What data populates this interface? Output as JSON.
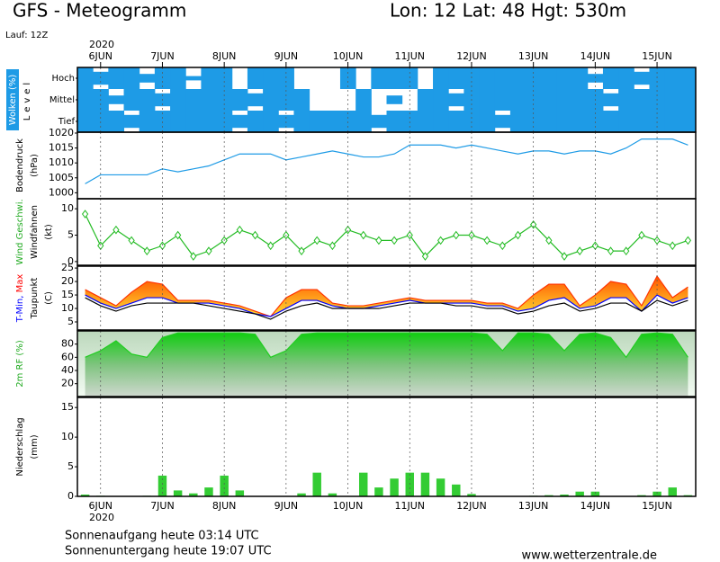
{
  "header": {
    "title": "GFS - Meteogramm",
    "location": "Lon: 12 Lat: 48 Hgt: 530m",
    "run": "Lauf: 12Z"
  },
  "time_axis": {
    "year": "2020",
    "xlim": [
      5.625,
      15.625
    ],
    "xticks": [
      {
        "value": 6,
        "label": "6JUN"
      },
      {
        "value": 7,
        "label": "7JUN"
      },
      {
        "value": 8,
        "label": "8JUN"
      },
      {
        "value": 9,
        "label": "9JUN"
      },
      {
        "value": 10,
        "label": "10JUN"
      },
      {
        "value": 11,
        "label": "11JUN"
      },
      {
        "value": 12,
        "label": "12JUN"
      },
      {
        "value": 13,
        "label": "13JUN"
      },
      {
        "value": 14,
        "label": "14JUN"
      },
      {
        "value": 15,
        "label": "15JUN"
      }
    ],
    "x": [
      5.75,
      6,
      6.25,
      6.5,
      6.75,
      7,
      7.25,
      7.5,
      7.75,
      8,
      8.25,
      8.5,
      8.75,
      9,
      9.25,
      9.5,
      9.75,
      10,
      10.25,
      10.5,
      10.75,
      11,
      11.25,
      11.5,
      11.75,
      12,
      12.25,
      12.5,
      12.75,
      13,
      13.25,
      13.5,
      13.75,
      14,
      14.25,
      14.5,
      14.75,
      15,
      15.25,
      15.5
    ]
  },
  "chart_data": [
    {
      "type": "heatmap",
      "ylabels": [
        [
          {
            "text": "Wolken (%)",
            "color": "#ffffff"
          }
        ],
        [
          {
            "text": "Level",
            "color": "#000000"
          }
        ]
      ],
      "color": "#1e9be6",
      "series": [
        {
          "name": "Hoch",
          "values": [
            100,
            60,
            100,
            100,
            40,
            100,
            100,
            20,
            100,
            100,
            0,
            100,
            100,
            100,
            0,
            0,
            0,
            100,
            0,
            100,
            100,
            100,
            0,
            100,
            100,
            100,
            100,
            100,
            100,
            100,
            100,
            100,
            100,
            40,
            100,
            100,
            60,
            100,
            100,
            100
          ]
        },
        {
          "name": "Mittel",
          "values": [
            100,
            100,
            40,
            100,
            100,
            60,
            100,
            100,
            100,
            100,
            100,
            60,
            100,
            100,
            100,
            0,
            0,
            0,
            100,
            0,
            40,
            0,
            100,
            100,
            60,
            100,
            100,
            100,
            100,
            100,
            100,
            100,
            100,
            100,
            60,
            100,
            100,
            100,
            100,
            100
          ]
        },
        {
          "name": "Tief",
          "values": [
            100,
            100,
            100,
            60,
            100,
            100,
            100,
            100,
            100,
            100,
            60,
            100,
            100,
            60,
            100,
            100,
            100,
            100,
            100,
            60,
            100,
            100,
            100,
            100,
            100,
            100,
            100,
            60,
            100,
            100,
            100,
            100,
            100,
            100,
            100,
            100,
            100,
            100,
            100,
            100
          ]
        }
      ]
    },
    {
      "type": "line",
      "ylabels": [
        [
          {
            "text": "Bodendruck",
            "color": "#000000"
          }
        ],
        [
          {
            "text": "(hPa)",
            "color": "#000000"
          }
        ]
      ],
      "ylim": [
        998,
        1020.3
      ],
      "yticks": [
        1000,
        1005,
        1010,
        1015,
        1020
      ],
      "series": [
        {
          "color": "#1e9be6",
          "values": [
            1003,
            1006,
            1006,
            1006,
            1006,
            1008,
            1007,
            1008,
            1009,
            1011,
            1013,
            1013,
            1013,
            1011,
            1012,
            1013,
            1014,
            1013,
            1012,
            1012,
            1013,
            1016,
            1016,
            1016,
            1015,
            1016,
            1015,
            1014,
            1013,
            1014,
            1014,
            1013,
            1014,
            1014,
            1013,
            1015,
            1018,
            1018,
            1018,
            1016
          ]
        }
      ]
    },
    {
      "type": "line",
      "ylabels": [
        [
          {
            "text": "Wind Geschwi.",
            "color": "#22aa22"
          }
        ],
        [
          {
            "text": "Windfahnen",
            "color": "#000000"
          }
        ],
        [
          {
            "text": "(kt)",
            "color": "#000000"
          }
        ]
      ],
      "ylim": [
        -0.7,
        11.9
      ],
      "yticks": [
        0,
        5,
        10
      ],
      "markers": true,
      "series": [
        {
          "color": "#22bb22",
          "values": [
            9,
            3,
            6,
            4,
            2,
            3,
            5,
            1,
            2,
            4,
            6,
            5,
            3,
            5,
            2,
            4,
            3,
            6,
            5,
            4,
            4,
            5,
            1,
            4,
            5,
            5,
            4,
            3,
            5,
            7,
            4,
            1,
            2,
            3,
            2,
            2,
            5,
            4,
            3,
            4
          ]
        }
      ]
    },
    {
      "type": "line",
      "band": true,
      "ylabels": [
        [
          {
            "text": "T-Min,",
            "color": "#0000ff"
          },
          {
            "text": " Max",
            "color": "#ff0000"
          }
        ],
        [
          {
            "text": "Taupunkt",
            "color": "#000000"
          }
        ],
        [
          {
            "text": "(C)",
            "color": "#000000"
          }
        ]
      ],
      "ylim": [
        2,
        25.7
      ],
      "yticks": [
        5,
        10,
        15,
        20,
        25
      ],
      "series": [
        {
          "color": "#ff3300",
          "values": [
            17,
            14,
            11,
            16,
            20,
            19,
            13,
            13,
            13,
            12,
            11,
            9,
            7,
            14,
            17,
            17,
            12,
            11,
            11,
            12,
            13,
            14,
            13,
            13,
            13,
            13,
            12,
            12,
            10,
            15,
            19,
            19,
            11,
            15,
            20,
            19,
            11,
            22,
            14,
            18
          ]
        },
        {
          "color": "#0000ff",
          "values": [
            15,
            12,
            10,
            12,
            14,
            14,
            12,
            12,
            12,
            11,
            10,
            8,
            7,
            10,
            13,
            13,
            11,
            10,
            10,
            11,
            12,
            13,
            12,
            12,
            12,
            12,
            11,
            11,
            9,
            10,
            13,
            14,
            10,
            11,
            14,
            14,
            9,
            15,
            12,
            14
          ]
        },
        {
          "color": "#000000",
          "values": [
            14,
            11,
            9,
            11,
            12,
            12,
            12,
            12,
            11,
            10,
            9,
            8,
            6,
            9,
            11,
            12,
            10,
            10,
            10,
            10,
            11,
            12,
            12,
            12,
            11,
            11,
            10,
            10,
            8,
            9,
            11,
            12,
            9,
            10,
            12,
            12,
            9,
            13,
            11,
            13
          ]
        }
      ]
    },
    {
      "type": "area",
      "ylabels": [
        [
          {
            "text": "2m RF (%)",
            "color": "#22aa22"
          }
        ]
      ],
      "ylim": [
        0.5,
        100
      ],
      "yticks": [
        20,
        40,
        60,
        80
      ],
      "series": [
        {
          "color": "#22cc22",
          "values": [
            60,
            70,
            85,
            65,
            60,
            90,
            97,
            97,
            97,
            97,
            97,
            95,
            60,
            70,
            95,
            97,
            97,
            97,
            97,
            97,
            97,
            97,
            97,
            97,
            97,
            97,
            95,
            70,
            97,
            97,
            95,
            70,
            95,
            97,
            90,
            60,
            95,
            97,
            95,
            60
          ]
        }
      ]
    },
    {
      "type": "bar",
      "ylabels": [
        [
          {
            "text": "Niederschlag",
            "color": "#000000"
          }
        ],
        [
          {
            "text": "(mm)",
            "color": "#000000"
          }
        ]
      ],
      "ylim": [
        0,
        16.7
      ],
      "yticks": [
        0,
        5,
        10,
        15
      ],
      "series": [
        {
          "color": "#33cc33",
          "values": [
            0.3,
            0.1,
            0,
            0,
            0.1,
            3.5,
            1,
            0.5,
            1.5,
            3.5,
            1,
            0,
            0,
            0,
            0.5,
            4,
            0.5,
            0,
            4,
            1.5,
            3,
            4,
            4,
            3,
            2,
            0.4,
            0,
            0,
            0,
            0.1,
            0.2,
            0.3,
            0.8,
            0.8,
            0,
            0,
            0.2,
            0.8,
            1.5,
            0.2
          ]
        }
      ]
    }
  ],
  "footer": {
    "sunrise": "Sonnenaufgang heute 03:14 UTC",
    "sunset": "Sonnenuntergang heute 19:07 UTC",
    "url": "www.wetterzentrale.de"
  }
}
